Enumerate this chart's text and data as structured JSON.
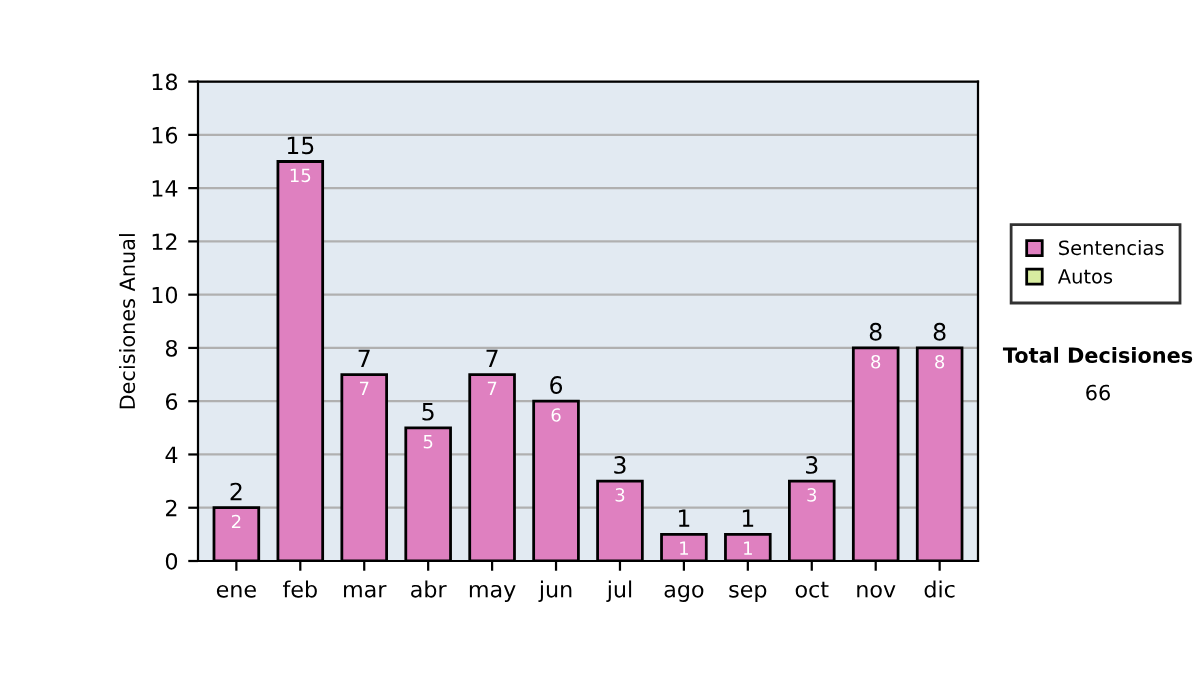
{
  "chart_data": {
    "type": "bar",
    "ylabel": "Decisiones Anual",
    "categories": [
      "ene",
      "feb",
      "mar",
      "abr",
      "may",
      "jun",
      "jul",
      "ago",
      "sep",
      "oct",
      "nov",
      "dic"
    ],
    "series": [
      {
        "name": "Sentencias",
        "color": "#df80c0",
        "values": [
          2,
          15,
          7,
          5,
          7,
          6,
          3,
          1,
          1,
          3,
          8,
          8
        ],
        "value_labels": [
          "2",
          "15",
          "7",
          "5",
          "7",
          "6",
          "3",
          "1",
          "1",
          "3",
          "8",
          "8"
        ]
      },
      {
        "name": "Autos",
        "color": "#d8eca0",
        "values": [
          0,
          0,
          0,
          0,
          0,
          0,
          0,
          0,
          0,
          0,
          0,
          0
        ]
      }
    ],
    "stacked": true,
    "totals": [
      "2",
      "15",
      "7",
      "5",
      "7",
      "6",
      "3",
      "1",
      "1",
      "3",
      "8",
      "8"
    ],
    "ylim": [
      0,
      18
    ],
    "yticks": [
      0,
      2,
      4,
      6,
      8,
      10,
      12,
      14,
      16,
      18
    ],
    "grid": "y",
    "legend": "right",
    "annotations": [
      "Total Decisiones",
      "66"
    ]
  }
}
